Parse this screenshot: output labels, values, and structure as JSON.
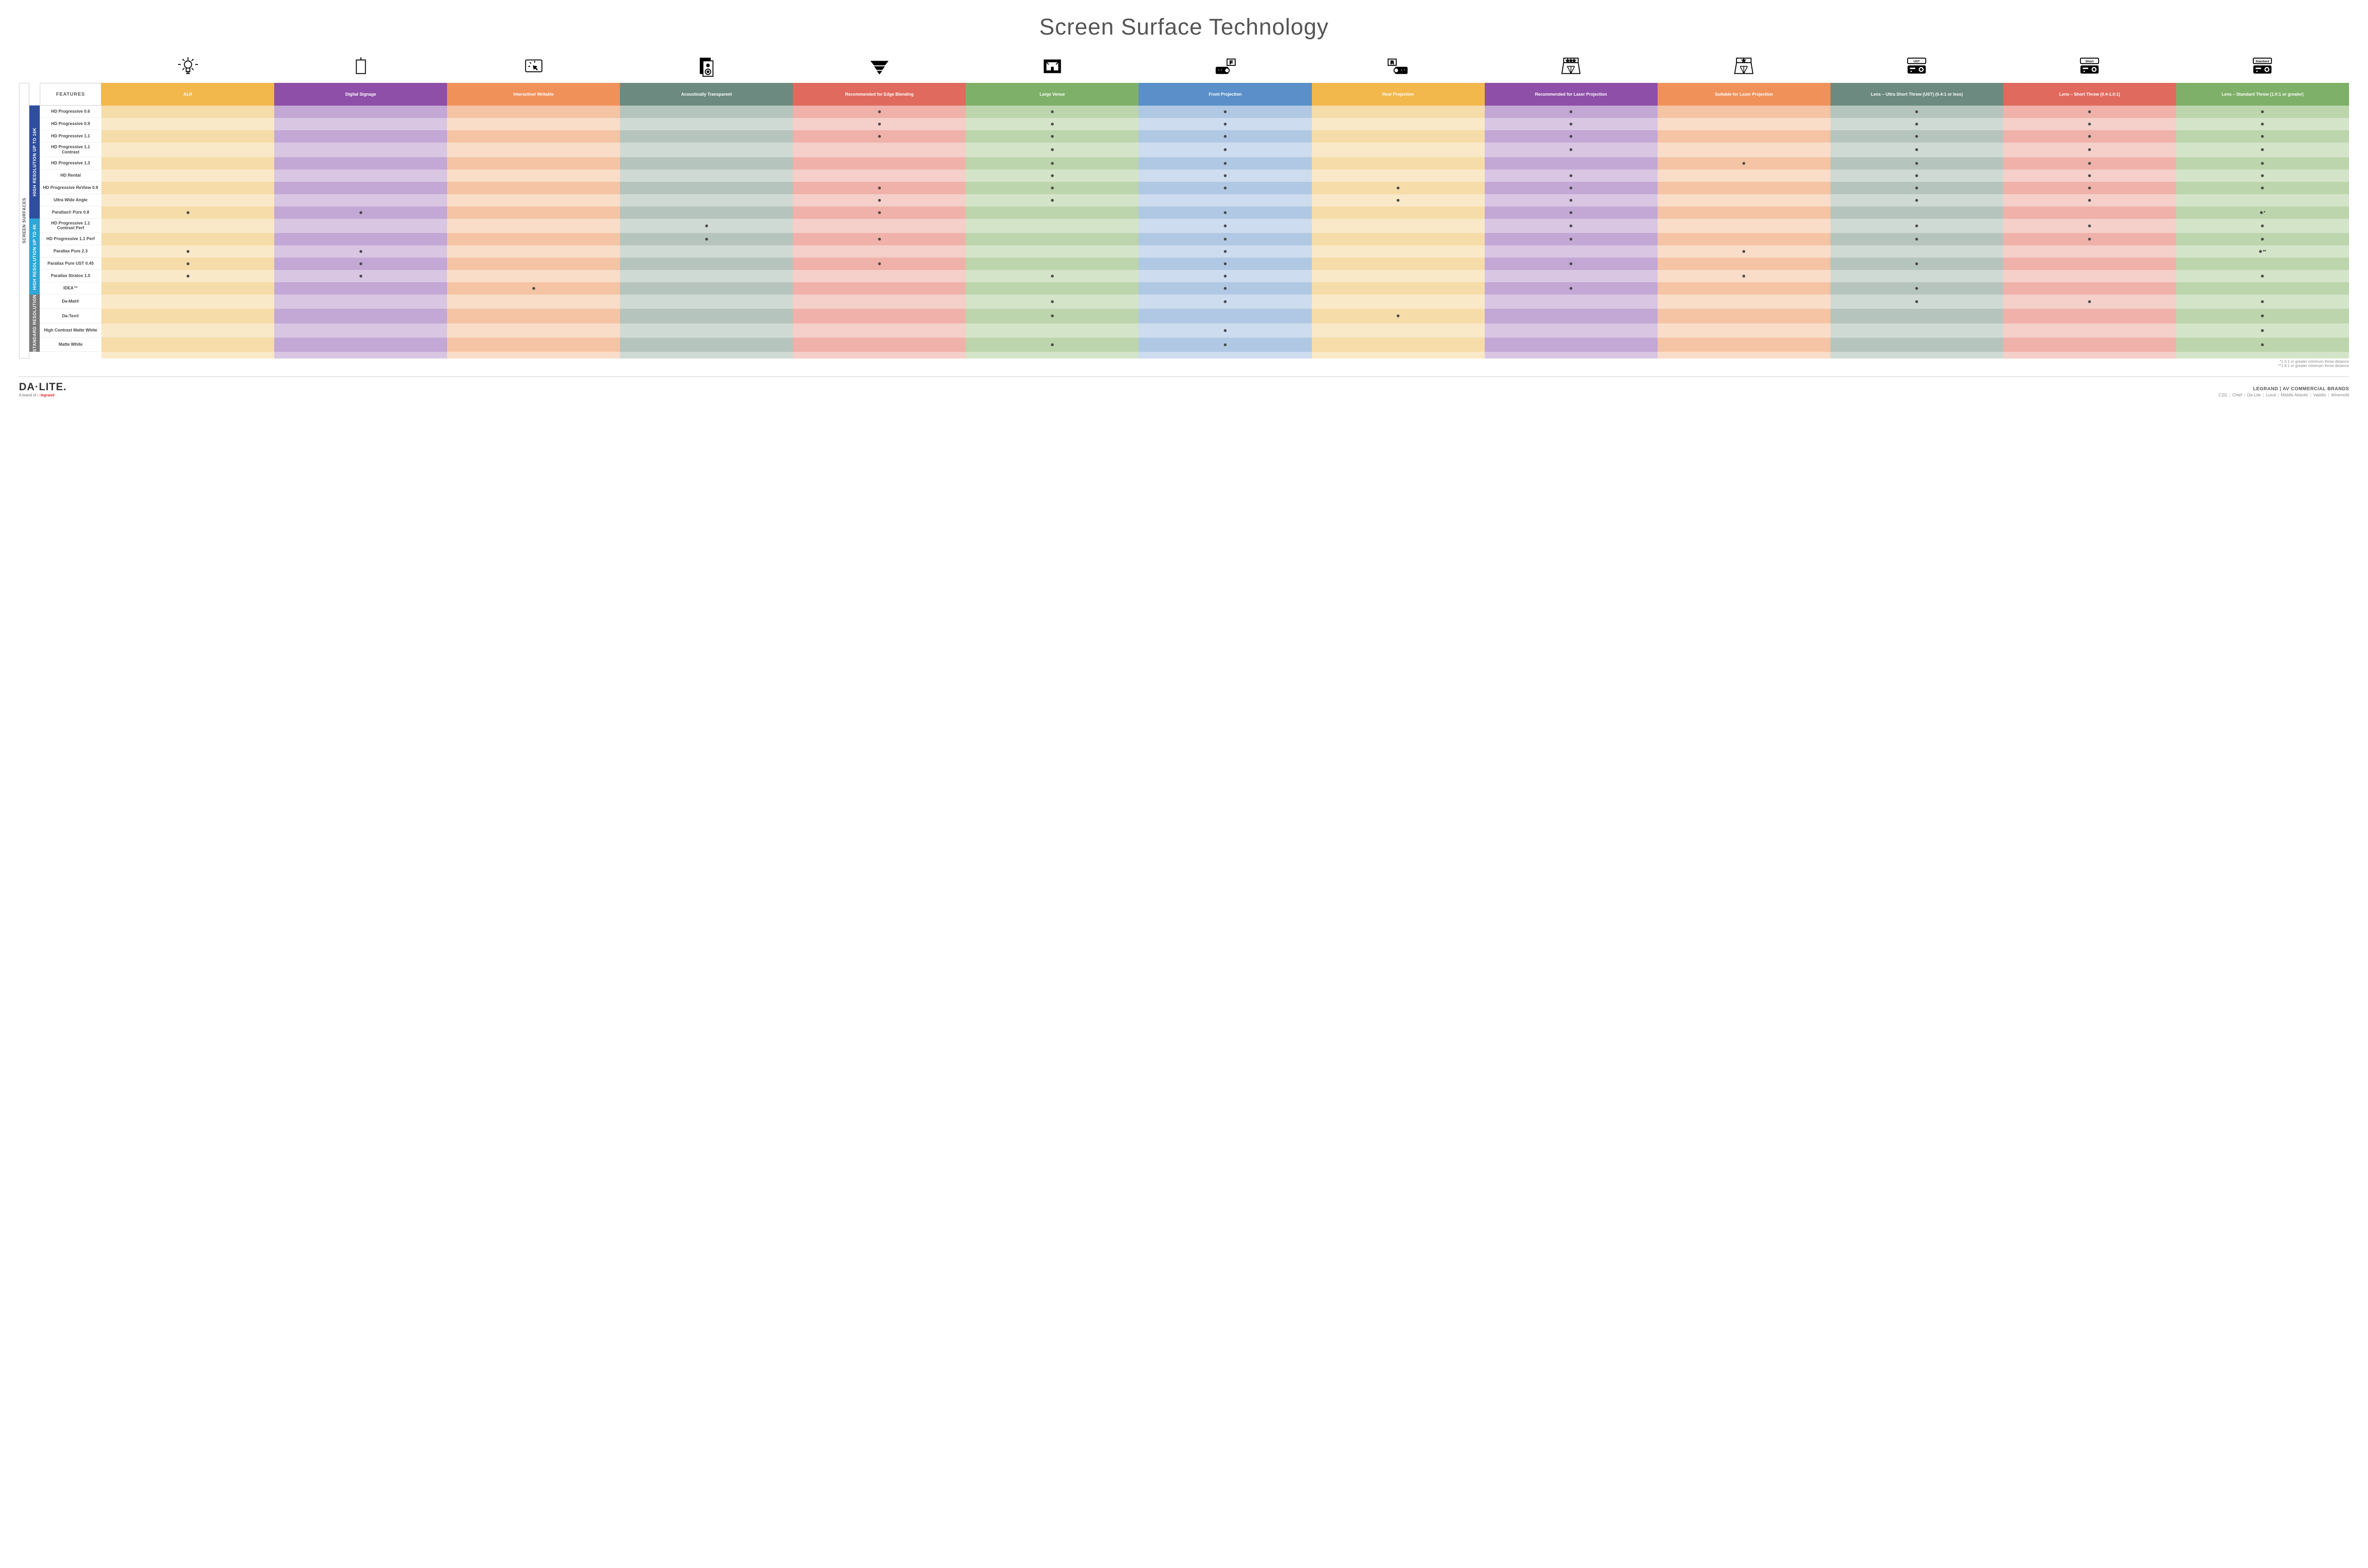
{
  "title": "Screen Surface Technology",
  "features_label": "FEATURES",
  "outer_category_label": "SCREEN SURFACES",
  "columns": [
    {
      "key": "alr",
      "label": "ALR",
      "color": "#f2b84b"
    },
    {
      "key": "signage",
      "label": "Digital Signage",
      "color": "#8e4fa8"
    },
    {
      "key": "interactive",
      "label": "Interactive/ Writable",
      "color": "#f0915a"
    },
    {
      "key": "acoustic",
      "label": "Acoustically Transparent",
      "color": "#6c8a80"
    },
    {
      "key": "edge",
      "label": "Recommended for Edge Blending",
      "color": "#e06a5e"
    },
    {
      "key": "large",
      "label": "Large Venue",
      "color": "#7fb069"
    },
    {
      "key": "front",
      "label": "Front Projection",
      "color": "#5a8fc9"
    },
    {
      "key": "rear",
      "label": "Rear Projection",
      "color": "#f2b84b"
    },
    {
      "key": "reclaser",
      "label": "Recommended for Laser Projection",
      "color": "#8e4fa8"
    },
    {
      "key": "suitlaser",
      "label": "Suitable for Laser Projection",
      "color": "#f0915a"
    },
    {
      "key": "ust",
      "label": "Lens – Ultra Short Throw (UST) (0.4:1 or less)",
      "color": "#6c8a80"
    },
    {
      "key": "short",
      "label": "Lens – Short Throw (0.4-1.0:1)",
      "color": "#e06a5e"
    },
    {
      "key": "std",
      "label": "Lens – Standard Throw (1.0:1 or greater)",
      "color": "#7fb069"
    }
  ],
  "column_tints": {
    "alr": [
      "#f6dca8",
      "#fae9c8"
    ],
    "signage": [
      "#c3a7d4",
      "#d9c6e3"
    ],
    "interactive": [
      "#f4c4a4",
      "#f9ddc8"
    ],
    "acoustic": [
      "#b6c4be",
      "#d0dad5"
    ],
    "edge": [
      "#efb1a9",
      "#f5cfc9"
    ],
    "large": [
      "#bcd5ac",
      "#d4e4c9"
    ],
    "front": [
      "#b0c8e3",
      "#cddcee"
    ],
    "rear": [
      "#f6dca8",
      "#fae9c8"
    ],
    "reclaser": [
      "#c3a7d4",
      "#d9c6e3"
    ],
    "suitlaser": [
      "#f4c4a4",
      "#f9ddc8"
    ],
    "ust": [
      "#b6c4be",
      "#d0dad5"
    ],
    "short": [
      "#efb1a9",
      "#f5cfc9"
    ],
    "std": [
      "#bcd5ac",
      "#d4e4c9"
    ]
  },
  "categories": [
    {
      "key": "hr16k",
      "label": "HIGH RESOLUTION UP TO 16K",
      "color": "#2f4f9e",
      "rows": [
        {
          "label": "HD Progressive 0.6",
          "cells": {
            "edge": 1,
            "large": 1,
            "front": 1,
            "reclaser": 1,
            "ust": 1,
            "short": 1,
            "std": 1
          }
        },
        {
          "label": "HD Progressive 0.9",
          "cells": {
            "edge": 1,
            "large": 1,
            "front": 1,
            "reclaser": 1,
            "ust": 1,
            "short": 1,
            "std": 1
          }
        },
        {
          "label": "HD Progressive 1.1",
          "cells": {
            "edge": 1,
            "large": 1,
            "front": 1,
            "reclaser": 1,
            "ust": 1,
            "short": 1,
            "std": 1
          }
        },
        {
          "label": "HD Progressive 1.1 Contrast",
          "cells": {
            "large": 1,
            "front": 1,
            "reclaser": 1,
            "ust": 1,
            "short": 1,
            "std": 1
          }
        },
        {
          "label": "HD Progressive 1.3",
          "cells": {
            "large": 1,
            "front": 1,
            "suitlaser": 1,
            "ust": 1,
            "short": 1,
            "std": 1
          }
        },
        {
          "label": "HD Rental",
          "cells": {
            "large": 1,
            "front": 1,
            "reclaser": 1,
            "ust": 1,
            "short": 1,
            "std": 1
          }
        },
        {
          "label": "HD Progressive ReView 0.9",
          "cells": {
            "edge": 1,
            "large": 1,
            "front": 1,
            "rear": 1,
            "reclaser": 1,
            "ust": 1,
            "short": 1,
            "std": 1
          }
        },
        {
          "label": "Ultra Wide Angle",
          "cells": {
            "edge": 1,
            "large": 1,
            "rear": 1,
            "reclaser": 1,
            "ust": 1,
            "short": 1
          }
        },
        {
          "label": "Parallax® Pure 0.8",
          "cells": {
            "alr": 1,
            "signage": 1,
            "edge": 1,
            "front": 1,
            "reclaser": 1,
            "std": "*"
          }
        }
      ]
    },
    {
      "key": "hr4k",
      "label": "HIGH RESOLUTION UP TO 4K",
      "color": "#2fa6d6",
      "rows": [
        {
          "label": "HD Progressive 1.1 Contrast Perf",
          "cells": {
            "acoustic": 1,
            "front": 1,
            "reclaser": 1,
            "ust": 1,
            "short": 1,
            "std": 1
          }
        },
        {
          "label": "HD Progressive 1.1 Perf",
          "cells": {
            "acoustic": 1,
            "edge": 1,
            "front": 1,
            "reclaser": 1,
            "ust": 1,
            "short": 1,
            "std": 1
          }
        },
        {
          "label": "Parallax Pure 2.3",
          "cells": {
            "alr": 1,
            "signage": 1,
            "front": 1,
            "suitlaser": 1,
            "std": "**"
          }
        },
        {
          "label": "Parallax Pure UST 0.45",
          "cells": {
            "alr": 1,
            "signage": 1,
            "edge": 1,
            "front": 1,
            "reclaser": 1,
            "ust": 1
          }
        },
        {
          "label": "Parallax Stratos 1.0",
          "cells": {
            "alr": 1,
            "signage": 1,
            "large": 1,
            "front": 1,
            "suitlaser": 1,
            "std": 1
          }
        },
        {
          "label": "IDEA™",
          "cells": {
            "interactive": 1,
            "front": 1,
            "reclaser": 1,
            "ust": 1
          }
        }
      ]
    },
    {
      "key": "stdres",
      "label": "STANDARD RESOLUTION",
      "color": "#7a7a7a",
      "rows": [
        {
          "label": "Da-Mat®",
          "cells": {
            "large": 1,
            "front": 1,
            "ust": 1,
            "short": 1,
            "std": 1
          }
        },
        {
          "label": "Da-Tex®",
          "cells": {
            "large": 1,
            "rear": 1,
            "std": 1
          }
        },
        {
          "label": "High Contrast Matte White",
          "cells": {
            "front": 1,
            "std": 1
          }
        },
        {
          "label": "Matte White",
          "cells": {
            "large": 1,
            "front": 1,
            "std": 1
          }
        }
      ]
    }
  ],
  "footnotes": [
    "*1.5:1 or greater minimum throw distance",
    "**1.8:1 or greater minimum throw distance"
  ],
  "footer": {
    "logo_main": "DA·LITE.",
    "logo_sub_prefix": "A brand of ",
    "logo_sub_brand": "legrand",
    "right_title": "LEGRAND | AV COMMERCIAL BRANDS",
    "right_brands": [
      "C2G",
      "Chief",
      "Da-Lite",
      "Luxul",
      "Middle Atlantic",
      "Vaddio",
      "Wiremold"
    ]
  },
  "projector_labels": {
    "ust": "UST",
    "short": "Short",
    "std": "Standard"
  }
}
